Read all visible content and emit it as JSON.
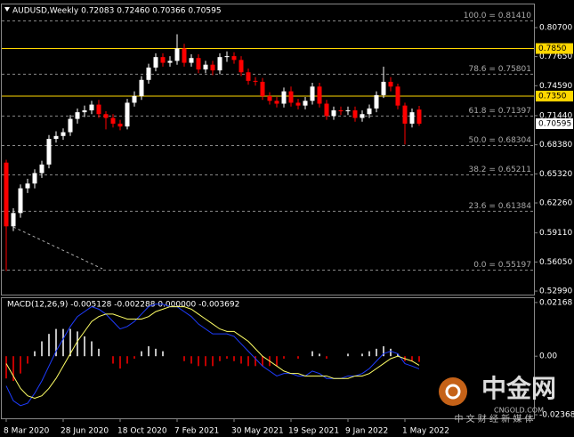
{
  "chart_data": {
    "type": "candlestick",
    "title": "AUDUSD,Weekly  0.72083 0.72460 0.70366 0.70595",
    "categories": [
      "8 Mar 2020",
      null,
      null,
      null,
      null,
      null,
      null,
      null,
      "28 Jun 2020",
      null,
      null,
      null,
      null,
      null,
      null,
      null,
      "18 Oct 2020",
      null,
      null,
      null,
      null,
      null,
      null,
      null,
      "7 Feb 2021",
      null,
      null,
      null,
      null,
      null,
      null,
      null,
      "30 May 2021",
      null,
      null,
      null,
      null,
      null,
      null,
      null,
      "19 Sep 2021",
      null,
      null,
      null,
      null,
      null,
      null,
      null,
      "9 Jan 2022",
      null,
      null,
      null,
      null,
      null,
      null,
      null,
      "1 May 2022",
      null,
      null
    ],
    "open": [
      0.665,
      0.598,
      0.612,
      0.638,
      0.643,
      0.654,
      0.663,
      0.69,
      0.693,
      0.697,
      0.711,
      0.718,
      0.72,
      0.726,
      0.716,
      0.712,
      0.706,
      0.703,
      0.728,
      0.735,
      0.752,
      0.765,
      0.776,
      0.77,
      0.772,
      0.785,
      0.77,
      0.775,
      0.763,
      0.768,
      0.762,
      0.776,
      0.777,
      0.773,
      0.76,
      0.751,
      0.75,
      0.735,
      0.73,
      0.727,
      0.74,
      0.728,
      0.725,
      0.73,
      0.745,
      0.727,
      0.714,
      0.72,
      0.719,
      0.72,
      0.712,
      0.716,
      0.722,
      0.736,
      0.75,
      0.745,
      0.725,
      0.706,
      0.72083
    ],
    "high": [
      0.668,
      0.617,
      0.642,
      0.648,
      0.658,
      0.667,
      0.694,
      0.698,
      0.701,
      0.715,
      0.722,
      0.725,
      0.73,
      0.731,
      0.719,
      0.716,
      0.71,
      0.732,
      0.74,
      0.756,
      0.769,
      0.78,
      0.78,
      0.777,
      0.8,
      0.79,
      0.779,
      0.779,
      0.772,
      0.772,
      0.78,
      0.782,
      0.781,
      0.777,
      0.764,
      0.755,
      0.754,
      0.739,
      0.734,
      0.744,
      0.745,
      0.732,
      0.734,
      0.749,
      0.749,
      0.731,
      0.724,
      0.724,
      0.724,
      0.724,
      0.72,
      0.726,
      0.74,
      0.766,
      0.755,
      0.748,
      0.728,
      0.722,
      0.7246
    ],
    "low": [
      0.551,
      0.593,
      0.607,
      0.633,
      0.638,
      0.649,
      0.659,
      0.686,
      0.689,
      0.693,
      0.706,
      0.713,
      0.716,
      0.712,
      0.7,
      0.702,
      0.699,
      0.7,
      0.724,
      0.731,
      0.748,
      0.761,
      0.766,
      0.766,
      0.768,
      0.766,
      0.766,
      0.759,
      0.759,
      0.757,
      0.758,
      0.771,
      0.769,
      0.756,
      0.747,
      0.746,
      0.731,
      0.726,
      0.723,
      0.723,
      0.724,
      0.721,
      0.721,
      0.726,
      0.723,
      0.71,
      0.71,
      0.715,
      0.715,
      0.708,
      0.708,
      0.712,
      0.718,
      0.733,
      0.74,
      0.721,
      0.684,
      0.702,
      0.70366
    ],
    "close": [
      0.598,
      0.612,
      0.638,
      0.643,
      0.654,
      0.663,
      0.69,
      0.693,
      0.697,
      0.711,
      0.718,
      0.72,
      0.726,
      0.716,
      0.712,
      0.706,
      0.703,
      0.728,
      0.735,
      0.752,
      0.765,
      0.776,
      0.77,
      0.772,
      0.785,
      0.77,
      0.775,
      0.763,
      0.768,
      0.762,
      0.776,
      0.777,
      0.773,
      0.76,
      0.751,
      0.75,
      0.735,
      0.73,
      0.727,
      0.74,
      0.728,
      0.725,
      0.73,
      0.745,
      0.727,
      0.714,
      0.72,
      0.719,
      0.72,
      0.712,
      0.716,
      0.722,
      0.736,
      0.75,
      0.745,
      0.725,
      0.706,
      0.718,
      0.70595
    ],
    "up_color": "#ffffff",
    "down_color": "#ff0000",
    "ylim": [
      0.5262,
      0.8323
    ],
    "yticks": [
      {
        "value": 0.807,
        "label": "0.80700"
      },
      {
        "value": 0.7765,
        "label": "0.77650"
      },
      {
        "value": 0.7459,
        "label": "0.74590"
      },
      {
        "value": 0.7144,
        "label": "0.71440"
      },
      {
        "value": 0.6838,
        "label": "0.68380"
      },
      {
        "value": 0.6532,
        "label": "0.65320"
      },
      {
        "value": 0.6226,
        "label": "0.62260"
      },
      {
        "value": 0.5911,
        "label": "0.59110"
      },
      {
        "value": 0.5605,
        "label": "0.56050"
      },
      {
        "value": 0.5299,
        "label": "0.52990"
      }
    ],
    "fib_levels": [
      {
        "value": 0.8141,
        "label": "100.0 = 0.81410"
      },
      {
        "value": 0.75801,
        "label": "78.6 = 0.75801"
      },
      {
        "value": 0.71397,
        "label": "61.8 = 0.71397"
      },
      {
        "value": 0.68304,
        "label": "50.0 = 0.68304"
      },
      {
        "value": 0.65211,
        "label": "38.2 = 0.65211"
      },
      {
        "value": 0.61384,
        "label": "23.6 = 0.61384"
      },
      {
        "value": 0.55197,
        "label": "0.0 = 0.55197"
      }
    ],
    "levels": [
      {
        "value": 0.785,
        "label": "0.7850"
      },
      {
        "value": 0.735,
        "label": "0.7350"
      }
    ],
    "level_color": "#ffd700",
    "current_price": {
      "value": 0.70595,
      "label": "0.70595"
    },
    "macd": {
      "label": "MACD(12,26,9) -0.005128 -0.002288 0.000000 -0.003692",
      "ylim": [
        -0.0251,
        0.0238
      ],
      "yticks": [
        0.02168,
        {
          "value": 0,
          "label": "0.00"
        },
        -0.02368
      ],
      "histogram": [
        -0.009,
        -0.01,
        -0.007,
        -0.003,
        0.002,
        0.006,
        0.009,
        0.011,
        0.011,
        0.011,
        0.01,
        0.008,
        0.006,
        0.003,
        0.0,
        -0.003,
        -0.005,
        -0.003,
        -0.001,
        0.002,
        0.004,
        0.003,
        0.002,
        0.0,
        0.0,
        -0.002,
        -0.003,
        -0.004,
        -0.004,
        -0.004,
        -0.002,
        -0.001,
        -0.002,
        -0.003,
        -0.004,
        -0.004,
        -0.004,
        -0.004,
        -0.004,
        -0.001,
        0.0,
        -0.001,
        0.0,
        0.002,
        0.001,
        -0.001,
        0.0,
        0.0,
        0.001,
        0.0,
        0.001,
        0.002,
        0.003,
        0.004,
        0.003,
        0.001,
        -0.002,
        -0.002,
        -0.002288
      ],
      "series": [
        {
          "color": "#1e3cff",
          "values": [
            -0.012,
            -0.018,
            -0.02,
            -0.019,
            -0.015,
            -0.01,
            -0.004,
            0.002,
            0.007,
            0.012,
            0.016,
            0.018,
            0.02,
            0.019,
            0.017,
            0.014,
            0.011,
            0.012,
            0.014,
            0.017,
            0.02,
            0.021,
            0.021,
            0.02,
            0.02,
            0.018,
            0.016,
            0.013,
            0.011,
            0.009,
            0.009,
            0.009,
            0.008,
            0.005,
            0.002,
            -0.001,
            -0.004,
            -0.006,
            -0.008,
            -0.007,
            -0.007,
            -0.008,
            -0.008,
            -0.006,
            -0.007,
            -0.009,
            -0.009,
            -0.009,
            -0.008,
            -0.008,
            -0.007,
            -0.005,
            -0.002,
            0.001,
            0.002,
            0.001,
            -0.003,
            -0.004,
            -0.005128
          ]
        },
        {
          "color": "#ffff66",
          "values": [
            -0.003,
            -0.008,
            -0.013,
            -0.016,
            -0.017,
            -0.016,
            -0.013,
            -0.009,
            -0.004,
            0.001,
            0.006,
            0.01,
            0.014,
            0.016,
            0.017,
            0.017,
            0.016,
            0.015,
            0.015,
            0.015,
            0.016,
            0.018,
            0.019,
            0.02,
            0.02,
            0.02,
            0.019,
            0.017,
            0.015,
            0.013,
            0.011,
            0.01,
            0.01,
            0.008,
            0.006,
            0.003,
            0.0,
            -0.002,
            -0.004,
            -0.006,
            -0.007,
            -0.007,
            -0.008,
            -0.008,
            -0.008,
            -0.008,
            -0.009,
            -0.009,
            -0.009,
            -0.008,
            -0.008,
            -0.007,
            -0.005,
            -0.003,
            -0.001,
            0.0,
            -0.001,
            -0.002,
            -0.003692
          ]
        }
      ]
    },
    "watermark": {
      "name": "中金网",
      "site": "CNGOLD.COM",
      "slogan": "中 文 财 经 新 媒 体"
    }
  }
}
